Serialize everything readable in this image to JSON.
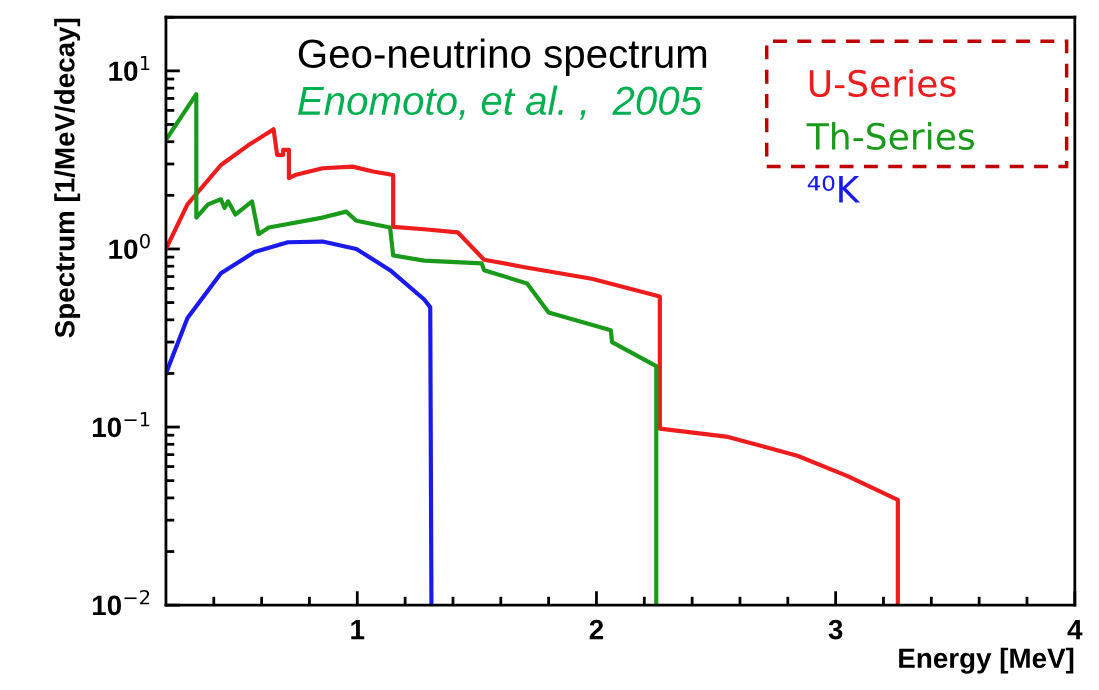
{
  "chart_data": {
    "type": "line",
    "xlabel": "Energy [MeV]",
    "ylabel": "Spectrum [1/MeV/decay]",
    "annotations": [
      "Geo-neutrino spectrum",
      "Enomoto, et al. ,  2005"
    ],
    "log": "y",
    "xlim": [
      0.2,
      4
    ],
    "ylim": [
      0.01,
      20
    ],
    "xticks": [
      {
        "value": 0.4,
        "label": null
      },
      {
        "value": 0.6,
        "label": null
      },
      {
        "value": 0.8,
        "label": null
      },
      1,
      {
        "value": 1.2,
        "label": null
      },
      {
        "value": 1.4,
        "label": null
      },
      {
        "value": 1.6,
        "label": null
      },
      {
        "value": 1.8,
        "label": null
      },
      2,
      {
        "value": 2.2,
        "label": null
      },
      {
        "value": 2.4,
        "label": null
      },
      {
        "value": 2.6,
        "label": null
      },
      {
        "value": 2.8,
        "label": null
      },
      3,
      {
        "value": 3.2,
        "label": null
      },
      {
        "value": 3.4,
        "label": null
      },
      {
        "value": 3.6,
        "label": null
      },
      {
        "value": 3.8,
        "label": null
      },
      4
    ],
    "yticks": [
      {
        "value": 0.01,
        "label": "10$^{−2}$"
      },
      {
        "value": 0.1,
        "label": "10$^{−1}$"
      },
      {
        "value": 1,
        "label": "10$^{0}$"
      },
      {
        "value": 10,
        "label": "10$^{1}$"
      }
    ],
    "grid": false,
    "legend": "top right",
    "line_style": "solid",
    "marker": "none",
    "series": [
      {
        "name": "U-Series",
        "color": "#ee1c1c",
        "x": [
          0.2,
          0.29,
          0.43,
          0.545,
          0.65,
          0.665,
          0.69,
          0.69,
          0.714,
          0.714,
          0.74,
          0.855,
          0.98,
          1.066,
          1.15,
          1.15,
          1.28,
          1.42,
          1.53,
          1.7,
          1.98,
          2.265,
          2.265,
          2.55,
          2.84,
          3.05,
          3.26,
          3.26
        ],
        "values": [
          1.0,
          1.78,
          2.96,
          3.83,
          4.7,
          3.37,
          3.37,
          3.6,
          3.6,
          2.5,
          2.6,
          2.84,
          2.9,
          2.72,
          2.6,
          1.33,
          1.29,
          1.24,
          0.87,
          0.79,
          0.68,
          0.54,
          0.098,
          0.088,
          0.069,
          0.053,
          0.039,
          0.01
        ]
      },
      {
        "name": "Th-Series",
        "color": "#1a9a1a",
        "x": [
          0.2,
          0.327,
          0.327,
          0.376,
          0.43,
          0.445,
          0.46,
          0.49,
          0.56,
          0.587,
          0.63,
          0.855,
          0.954,
          0.996,
          1.137,
          1.15,
          1.28,
          1.52,
          1.53,
          1.71,
          1.8,
          1.98,
          2.06,
          2.065,
          2.25,
          2.25
        ],
        "values": [
          4.1,
          7.4,
          1.5,
          1.78,
          1.9,
          1.7,
          1.85,
          1.56,
          1.85,
          1.21,
          1.32,
          1.5,
          1.62,
          1.44,
          1.32,
          0.92,
          0.86,
          0.83,
          0.76,
          0.64,
          0.44,
          0.375,
          0.35,
          0.3,
          0.22,
          0.01
        ]
      },
      {
        "name": "⁴⁰K",
        "color": "#1a1aee",
        "x": [
          0.2,
          0.29,
          0.43,
          0.57,
          0.71,
          0.855,
          0.996,
          1.137,
          1.28,
          1.305,
          1.31
        ],
        "values": [
          0.2,
          0.41,
          0.73,
          0.96,
          1.09,
          1.1,
          1.0,
          0.76,
          0.52,
          0.47,
          0.01
        ]
      }
    ]
  }
}
